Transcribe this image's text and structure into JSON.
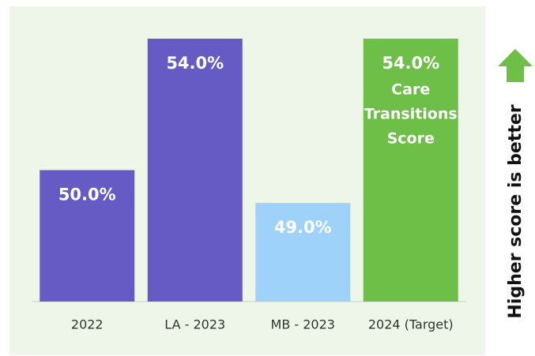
{
  "chart_data": {
    "type": "bar",
    "categories": [
      "2022",
      "LA - 2023",
      "MB - 2023",
      "2024 (Target)"
    ],
    "values": [
      50,
      54,
      49,
      54
    ],
    "value_labels": [
      "50.0%",
      "54.0%",
      "49.0%",
      "54.0%"
    ],
    "colors": [
      "#665bc4",
      "#665bc4",
      "#9fd2fb",
      "#6dbf47"
    ],
    "ylim": [
      46,
      54
    ],
    "annotation_lines": [
      "Care",
      "Transitions",
      "Score"
    ],
    "side_label": "Higher score is better",
    "background": "#eef6ea",
    "arrow_color": "#6dbf47"
  }
}
